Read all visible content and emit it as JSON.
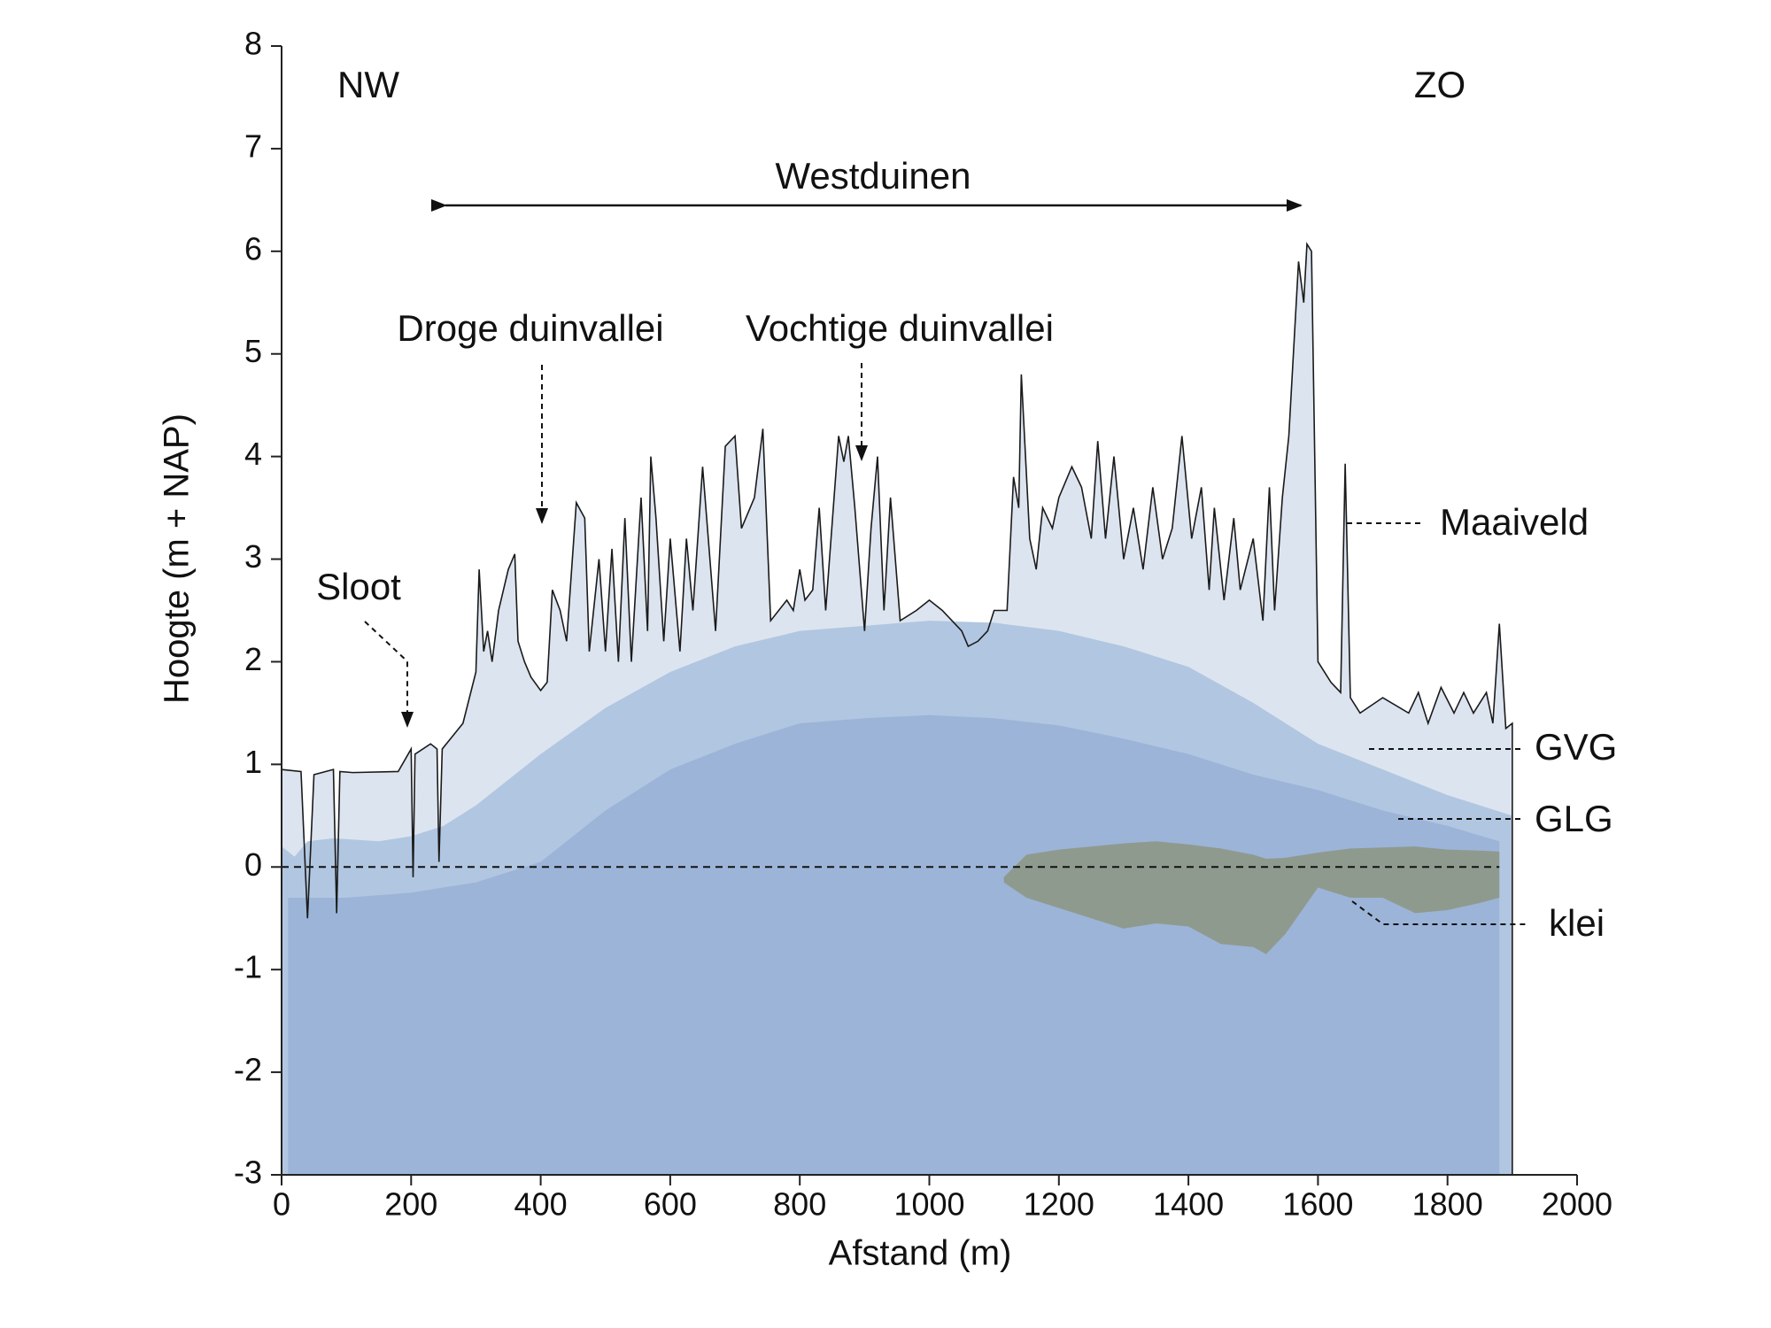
{
  "chart_data": {
    "type": "area",
    "x_label": "Afstand (m)",
    "y_label": "Hoogte (m + NAP)",
    "annotations": [
      "NW",
      "ZO",
      "Westduinen",
      "Droge duinvallei",
      "Vochtige duinvallei",
      "Sloot"
    ],
    "xlim": [
      0,
      2000
    ],
    "xticks": [
      0,
      200,
      400,
      600,
      800,
      1000,
      1200,
      1400,
      1600,
      1800,
      2000
    ],
    "ylim": [
      -3,
      8
    ],
    "yticks": [
      -3,
      -2,
      -1,
      0,
      1,
      2,
      3,
      4,
      5,
      6,
      7,
      8
    ],
    "grid": false,
    "series": [
      {
        "name": "Maaiveld",
        "color": "#1a1a1a",
        "fill": "#dce4f0",
        "x": [
          0,
          30,
          40,
          50,
          80,
          85,
          90,
          110,
          180,
          200,
          203,
          206,
          230,
          240,
          243,
          248,
          280,
          300,
          305,
          312,
          318,
          325,
          335,
          350,
          360,
          365,
          375,
          385,
          400,
          410,
          418,
          430,
          440,
          455,
          468,
          475,
          490,
          500,
          510,
          520,
          530,
          540,
          555,
          565,
          570,
          578,
          590,
          600,
          615,
          625,
          635,
          650,
          670,
          685,
          700,
          710,
          730,
          743,
          755,
          780,
          790,
          800,
          808,
          820,
          830,
          840,
          860,
          868,
          875,
          885,
          900,
          910,
          920,
          930,
          940,
          955,
          980,
          1000,
          1020,
          1050,
          1060,
          1075,
          1090,
          1100,
          1120,
          1130,
          1138,
          1142,
          1155,
          1165,
          1175,
          1190,
          1200,
          1220,
          1235,
          1250,
          1260,
          1272,
          1285,
          1300,
          1315,
          1330,
          1345,
          1360,
          1375,
          1390,
          1405,
          1420,
          1432,
          1440,
          1455,
          1470,
          1480,
          1500,
          1515,
          1525,
          1533,
          1545,
          1555,
          1570,
          1578,
          1583,
          1590,
          1600,
          1620,
          1635,
          1642,
          1650,
          1665,
          1700,
          1740,
          1755,
          1770,
          1790,
          1810,
          1825,
          1840,
          1860,
          1870,
          1880,
          1890,
          1900
        ],
        "values": [
          0.95,
          0.93,
          -0.5,
          0.9,
          0.95,
          -0.45,
          0.93,
          0.92,
          0.93,
          1.15,
          -0.1,
          1.1,
          1.2,
          1.15,
          0.05,
          1.15,
          1.4,
          1.9,
          2.9,
          2.1,
          2.3,
          2,
          2.5,
          2.9,
          3.05,
          2.2,
          2,
          1.85,
          1.72,
          1.8,
          2.7,
          2.5,
          2.2,
          3.55,
          3.4,
          2.1,
          3,
          2.1,
          3.1,
          2,
          3.4,
          2,
          3.6,
          2.3,
          4,
          3.4,
          2.2,
          3.2,
          2.1,
          3.2,
          2.5,
          3.9,
          2.3,
          4.1,
          4.2,
          3.3,
          3.6,
          4.27,
          2.4,
          2.6,
          2.5,
          2.9,
          2.6,
          2.7,
          3.5,
          2.5,
          4.2,
          3.95,
          4.2,
          3.5,
          2.3,
          3.3,
          4,
          2.5,
          3.6,
          2.4,
          2.5,
          2.6,
          2.5,
          2.3,
          2.15,
          2.2,
          2.3,
          2.5,
          2.5,
          3.8,
          3.5,
          4.8,
          3.2,
          2.9,
          3.5,
          3.3,
          3.6,
          3.9,
          3.7,
          3.2,
          4.15,
          3.2,
          4,
          3,
          3.5,
          2.9,
          3.7,
          3,
          3.3,
          4.2,
          3.2,
          3.7,
          2.7,
          3.5,
          2.6,
          3.4,
          2.7,
          3.2,
          2.4,
          3.7,
          2.5,
          3.6,
          4.2,
          5.9,
          5.5,
          6.07,
          6,
          2,
          1.8,
          1.7,
          3.93,
          1.65,
          1.5,
          1.65,
          1.5,
          1.7,
          1.4,
          1.75,
          1.5,
          1.7,
          1.5,
          1.7,
          1.4,
          2.37,
          1.35,
          1.4
        ]
      },
      {
        "name": "GVG",
        "color": "#b1c6e0",
        "x": [
          0,
          20,
          40,
          80,
          150,
          200,
          250,
          300,
          400,
          500,
          600,
          700,
          800,
          900,
          1000,
          1100,
          1200,
          1300,
          1400,
          1500,
          1600,
          1700,
          1800,
          1900
        ],
        "values": [
          0.2,
          0.1,
          0.25,
          0.28,
          0.25,
          0.3,
          0.4,
          0.6,
          1.1,
          1.55,
          1.9,
          2.15,
          2.3,
          2.35,
          2.4,
          2.38,
          2.3,
          2.15,
          1.95,
          1.6,
          1.2,
          0.95,
          0.7,
          0.5
        ]
      },
      {
        "name": "GLG",
        "color": "#9cb4d8",
        "x": [
          10,
          100,
          200,
          300,
          400,
          500,
          600,
          700,
          800,
          900,
          1000,
          1100,
          1200,
          1300,
          1400,
          1500,
          1600,
          1700,
          1800,
          1880
        ],
        "values": [
          -0.3,
          -0.3,
          -0.25,
          -0.15,
          0.05,
          0.55,
          0.95,
          1.2,
          1.4,
          1.45,
          1.48,
          1.45,
          1.38,
          1.25,
          1.1,
          0.9,
          0.75,
          0.55,
          0.4,
          0.25
        ]
      },
      {
        "name": "klei",
        "color": "#8f9a8e",
        "x": [
          1115,
          1150,
          1200,
          1250,
          1300,
          1350,
          1400,
          1450,
          1500,
          1520,
          1550,
          1600,
          1650,
          1700,
          1750,
          1800,
          1850,
          1880
        ],
        "values": [
          -0.1,
          0.12,
          0.17,
          0.2,
          0.23,
          0.25,
          0.22,
          0.18,
          0.12,
          0.08,
          0.09,
          0.14,
          0.18,
          0.19,
          0.2,
          0.17,
          0.16,
          0.15
        ],
        "lower": [
          -0.15,
          -0.3,
          -0.4,
          -0.5,
          -0.6,
          -0.55,
          -0.58,
          -0.75,
          -0.78,
          -0.85,
          -0.65,
          -0.2,
          -0.3,
          -0.3,
          -0.45,
          -0.42,
          -0.35,
          -0.3
        ]
      }
    ]
  }
}
